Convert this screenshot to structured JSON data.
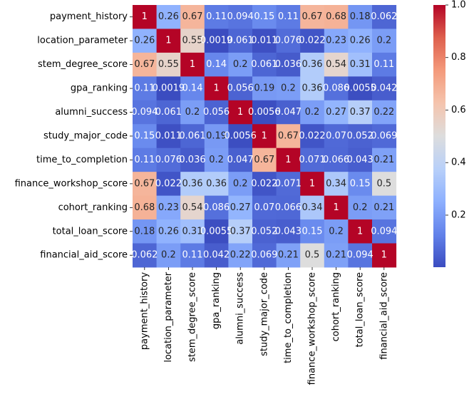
{
  "chart_data": {
    "type": "heatmap",
    "title": "",
    "xlabel": "",
    "ylabel": "",
    "colormap": "coolwarm",
    "row_labels": [
      "payment_history",
      "location_parameter",
      "stem_degree_score",
      "gpa_ranking",
      "alumni_success",
      "study_major_code",
      "time_to_completion",
      "finance_workshop_score",
      "cohort_ranking",
      "total_loan_score",
      "financial_aid_score"
    ],
    "col_labels": [
      "payment_history",
      "location_parameter",
      "stem_degree_score",
      "gpa_ranking",
      "alumni_success",
      "study_major_code",
      "time_to_completion",
      "finance_workshop_score",
      "cohort_ranking",
      "total_loan_score",
      "financial_aid_score"
    ],
    "values": [
      [
        1,
        0.26,
        0.67,
        0.11,
        0.094,
        0.15,
        0.11,
        0.67,
        0.68,
        0.18,
        0.062
      ],
      [
        0.26,
        1,
        0.55,
        0.0019,
        0.061,
        0.011,
        0.076,
        0.022,
        0.23,
        0.26,
        0.2
      ],
      [
        0.67,
        0.55,
        1,
        0.14,
        0.2,
        0.061,
        0.036,
        0.36,
        0.54,
        0.31,
        0.11
      ],
      [
        0.11,
        0.0019,
        0.14,
        1,
        0.056,
        0.19,
        0.2,
        0.36,
        0.086,
        0.0055,
        0.042
      ],
      [
        0.094,
        0.061,
        0.2,
        0.056,
        1,
        0.0056,
        0.047,
        0.2,
        0.27,
        0.37,
        0.22
      ],
      [
        0.15,
        0.011,
        0.061,
        0.19,
        0.0056,
        1,
        0.67,
        0.022,
        0.07,
        0.052,
        0.069
      ],
      [
        0.11,
        0.076,
        0.036,
        0.2,
        0.047,
        0.67,
        1,
        0.071,
        0.066,
        0.043,
        0.21
      ],
      [
        0.67,
        0.022,
        0.36,
        0.36,
        0.2,
        0.022,
        0.071,
        1,
        0.34,
        0.15,
        0.5
      ],
      [
        0.68,
        0.23,
        0.54,
        0.086,
        0.27,
        0.07,
        0.066,
        0.34,
        1,
        0.2,
        0.21
      ],
      [
        0.18,
        0.26,
        0.31,
        0.0055,
        0.37,
        0.052,
        0.043,
        0.15,
        0.2,
        1,
        0.094
      ],
      [
        0.062,
        0.2,
        0.11,
        0.042,
        0.22,
        0.069,
        0.21,
        0.5,
        0.21,
        0.094,
        1
      ]
    ],
    "annotations": [
      [
        "1",
        "0.26",
        "0.67",
        "0.11",
        "0.094",
        "0.15",
        "0.11",
        "0.67",
        "0.68",
        "0.18",
        "0.062"
      ],
      [
        "0.26",
        "1",
        "0.55",
        "0.0019",
        "0.061",
        "0.011",
        "0.076",
        "0.022",
        "0.23",
        "0.26",
        "0.2"
      ],
      [
        "0.67",
        "0.55",
        "1",
        "0.14",
        "0.2",
        "0.061",
        "0.036",
        "0.36",
        "0.54",
        "0.31",
        "0.11"
      ],
      [
        "0.11",
        "0.0019",
        "0.14",
        "1",
        "0.056",
        "0.19",
        "0.2",
        "0.36",
        "0.086",
        "0.0055",
        "0.042"
      ],
      [
        "0.094",
        "0.061",
        "0.2",
        "0.056",
        "1",
        "0.0056",
        "0.047",
        "0.2",
        "0.27",
        "0.37",
        "0.22"
      ],
      [
        "0.15",
        "0.011",
        "0.061",
        "0.19",
        "0.0056",
        "1",
        "0.67",
        "0.022",
        "0.07",
        "0.052",
        "0.069"
      ],
      [
        "0.11",
        "0.076",
        "0.036",
        "0.2",
        "0.047",
        "0.67",
        "1",
        "0.071",
        "0.066",
        "0.043",
        "0.21"
      ],
      [
        "0.67",
        "0.022",
        "0.36",
        "0.36",
        "0.2",
        "0.022",
        "0.071",
        "1",
        "0.34",
        "0.15",
        "0.5"
      ],
      [
        "0.68",
        "0.23",
        "0.54",
        "0.086",
        "0.27",
        "0.07",
        "0.066",
        "0.34",
        "1",
        "0.2",
        "0.21"
      ],
      [
        "0.18",
        "0.26",
        "0.31",
        "0.0055",
        "0.37",
        "0.052",
        "0.043",
        "0.15",
        "0.2",
        "1",
        "0.094"
      ],
      [
        "0.062",
        "0.2",
        "0.11",
        "0.042",
        "0.22",
        "0.069",
        "0.21",
        "0.5",
        "0.21",
        "0.094",
        "1"
      ]
    ],
    "vmin": 0.0019,
    "vmax": 1,
    "colorbar": {
      "ticks": [
        0.2,
        0.4,
        0.6,
        0.8,
        1.0
      ],
      "tick_labels": [
        "0.2",
        "0.4",
        "0.6",
        "0.8",
        "1.0"
      ],
      "placement": "right"
    },
    "grid": false
  }
}
